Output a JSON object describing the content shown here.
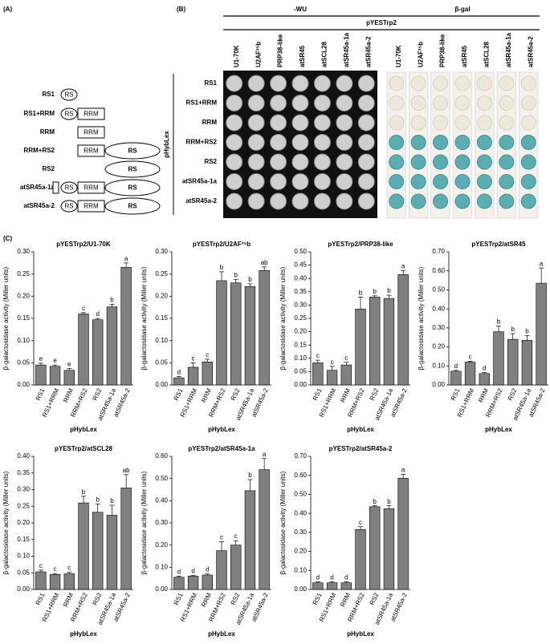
{
  "panel_a": {
    "label": "(A)",
    "constructs": [
      {
        "name": "RS1",
        "domains": [
          "RS"
        ]
      },
      {
        "name": "RS1+RRM",
        "domains": [
          "RS",
          "RRM"
        ]
      },
      {
        "name": "RRM",
        "domains": [
          "RRM"
        ]
      },
      {
        "name": "RRM+RS2",
        "domains": [
          "RRM",
          "RS"
        ]
      },
      {
        "name": "RS2",
        "domains": [
          "RS"
        ]
      },
      {
        "name": "atSR45a-1a",
        "domains": [
          "RS",
          "RRM",
          "RS"
        ]
      },
      {
        "name": "atSR45a-2",
        "domains": [
          "RS",
          "RRM",
          "RS"
        ]
      }
    ]
  },
  "panel_b": {
    "label": "(B)",
    "left_header": "-WU",
    "right_header": "β-gal",
    "span_header": "pYESTrp2",
    "row_axis": "pHybLex",
    "columns": [
      "U1-70K",
      "U2AF³⁵b",
      "PRP38-like",
      "atSR45",
      "atSCL28",
      "atSR45a-1a",
      "atSR45a-2"
    ],
    "rows": [
      "RS1",
      "RS1+RRM",
      "RRM",
      "RRM+RS2",
      "RS2",
      "atSR45a-1a",
      "atSR45a-2"
    ]
  },
  "panel_c_label": "(C)",
  "chart_data": [
    {
      "type": "bar",
      "title": "pYESTrp2/U1-70K",
      "x_label": "pHybLex",
      "y_label": "β-galactosidase activity (Miller units)",
      "color": "#808080",
      "categories": [
        "RS1",
        "RS1+RRM",
        "RRM",
        "RRM+RS2",
        "RS2",
        "atSR45a-1a",
        "atSR45a-2"
      ],
      "values": [
        0.045,
        0.042,
        0.033,
        0.16,
        0.147,
        0.176,
        0.265
      ],
      "errors": [
        0.004,
        0.003,
        0.004,
        0.003,
        0.003,
        0.006,
        0.01
      ],
      "letters": [
        "e",
        "e",
        "e",
        "c",
        "d",
        "b",
        "a"
      ],
      "ylim": [
        0,
        0.3
      ],
      "yticks": [
        {
          "value": 0,
          "label": "0.00"
        },
        {
          "value": 0.05,
          "label": "0.05"
        },
        {
          "value": 0.1,
          "label": "0.10"
        },
        {
          "value": 0.15,
          "label": "0.15"
        },
        {
          "value": 0.2,
          "label": "0.20"
        },
        {
          "value": 0.25,
          "label": "0.25"
        },
        {
          "value": 0.3,
          "label": "0.30"
        }
      ]
    },
    {
      "type": "bar",
      "title": "pYESTrp2/U2AF³⁵b",
      "x_label": "pHybLex",
      "y_label": "β-galactosidase activity (Miller units)",
      "color": "#808080",
      "categories": [
        "RS1",
        "RS1+RRM",
        "RRM",
        "RRM+RS2",
        "RS2",
        "atSR45a-1a",
        "atSR45a-2"
      ],
      "values": [
        0.016,
        0.04,
        0.052,
        0.235,
        0.23,
        0.222,
        0.258
      ],
      "errors": [
        0.003,
        0.01,
        0.006,
        0.02,
        0.008,
        0.006,
        0.008
      ],
      "letters": [
        "d",
        "c",
        "c",
        "b",
        "b",
        "b",
        "ab"
      ],
      "ylim": [
        0,
        0.3
      ],
      "yticks": [
        {
          "value": 0,
          "label": "0.00"
        },
        {
          "value": 0.05,
          "label": "0.05"
        },
        {
          "value": 0.1,
          "label": "0.10"
        },
        {
          "value": 0.15,
          "label": "0.15"
        },
        {
          "value": 0.2,
          "label": "0.20"
        },
        {
          "value": 0.25,
          "label": "0.25"
        },
        {
          "value": 0.3,
          "label": "0.30"
        }
      ]
    },
    {
      "type": "bar",
      "title": "pYESTrp2/PRP38-like",
      "x_label": "pHybLex",
      "y_label": "β-galactosidase activity (Miller units)",
      "color": "#808080",
      "categories": [
        "RS1",
        "RS1+RRM",
        "RRM",
        "RRM+RS2",
        "RS2",
        "atSR45a-1a",
        "atSR45a-2"
      ],
      "values": [
        0.083,
        0.055,
        0.075,
        0.285,
        0.33,
        0.325,
        0.415
      ],
      "errors": [
        0.01,
        0.015,
        0.01,
        0.045,
        0.005,
        0.012,
        0.015
      ],
      "letters": [
        "c",
        "c",
        "c",
        "b",
        "b",
        "b",
        "a"
      ],
      "ylim": [
        0,
        0.5
      ],
      "yticks": [
        {
          "value": 0,
          "label": "0.00"
        },
        {
          "value": 0.05,
          "label": "0.05"
        },
        {
          "value": 0.1,
          "label": "0.10"
        },
        {
          "value": 0.15,
          "label": "0.15"
        },
        {
          "value": 0.2,
          "label": "0.20"
        },
        {
          "value": 0.25,
          "label": "0.25"
        },
        {
          "value": 0.3,
          "label": "0.30"
        },
        {
          "value": 0.35,
          "label": "0.35"
        },
        {
          "value": 0.4,
          "label": "0.40"
        },
        {
          "value": 0.45,
          "label": "0.45"
        },
        {
          "value": 0.5,
          "label": "0.50"
        }
      ]
    },
    {
      "type": "bar",
      "title": "pYESTrp2/atSR45",
      "x_label": "pHybLex",
      "y_label": "β-galactosidase activity (Miller units)",
      "color": "#808080",
      "categories": [
        "RS1",
        "RS1+RRM",
        "RRM",
        "RRM+RS2",
        "RS2",
        "atSR45a-1a",
        "atSR45a-2"
      ],
      "values": [
        0.072,
        0.12,
        0.06,
        0.28,
        0.24,
        0.235,
        0.535
      ],
      "errors": [
        0.005,
        0.005,
        0.005,
        0.03,
        0.03,
        0.025,
        0.08
      ],
      "letters": [
        "d",
        "c",
        "d",
        "b",
        "b",
        "b",
        "a"
      ],
      "ylim": [
        0,
        0.7
      ],
      "yticks": [
        {
          "value": 0,
          "label": "0.00"
        },
        {
          "value": 0.1,
          "label": "0.10"
        },
        {
          "value": 0.2,
          "label": "0.20"
        },
        {
          "value": 0.3,
          "label": "0.30"
        },
        {
          "value": 0.4,
          "label": "0.40"
        },
        {
          "value": 0.5,
          "label": "0.50"
        },
        {
          "value": 0.6,
          "label": "0.60"
        },
        {
          "value": 0.7,
          "label": "0.70"
        }
      ]
    },
    {
      "type": "bar",
      "title": "pYESTrp2/atSCL28",
      "x_label": "pHybLex",
      "y_label": "β-galactosidase activity (Miller units)",
      "color": "#808080",
      "categories": [
        "RS1",
        "RS1+RRM",
        "RRM",
        "RRM+RS2",
        "RS2",
        "atSR45a-1a",
        "atSR45a-2"
      ],
      "values": [
        0.053,
        0.045,
        0.047,
        0.26,
        0.232,
        0.223,
        0.305
      ],
      "errors": [
        0.005,
        0.003,
        0.005,
        0.02,
        0.025,
        0.03,
        0.04
      ],
      "letters": [
        "c",
        "c",
        "c",
        "b",
        "b",
        "b",
        "ab"
      ],
      "ylim": [
        0,
        0.4
      ],
      "yticks": [
        {
          "value": 0,
          "label": "0.00"
        },
        {
          "value": 0.05,
          "label": "0.05"
        },
        {
          "value": 0.1,
          "label": "0.10"
        },
        {
          "value": 0.15,
          "label": "0.15"
        },
        {
          "value": 0.2,
          "label": "0.20"
        },
        {
          "value": 0.25,
          "label": "0.25"
        },
        {
          "value": 0.3,
          "label": "0.30"
        },
        {
          "value": 0.35,
          "label": "0.35"
        },
        {
          "value": 0.4,
          "label": "0.40"
        }
      ]
    },
    {
      "type": "bar",
      "title": "pYESTrp2/atSR45a-1a",
      "x_label": "pHybLex",
      "y_label": "β-galactosidase activity (Miller units)",
      "color": "#808080",
      "categories": [
        "RS1",
        "RS1+RRM",
        "RRM",
        "RRM+RS2",
        "RS2",
        "atSR45a-1a",
        "atSR45a-2"
      ],
      "values": [
        0.055,
        0.06,
        0.065,
        0.175,
        0.2,
        0.445,
        0.54
      ],
      "errors": [
        0.005,
        0.003,
        0.005,
        0.04,
        0.02,
        0.05,
        0.05
      ],
      "letters": [
        "d",
        "d",
        "d",
        "c",
        "c",
        "b",
        "a"
      ],
      "ylim": [
        0,
        0.6
      ],
      "yticks": [
        {
          "value": 0,
          "label": "0.00"
        },
        {
          "value": 0.1,
          "label": "0.10"
        },
        {
          "value": 0.2,
          "label": "0.20"
        },
        {
          "value": 0.3,
          "label": "0.30"
        },
        {
          "value": 0.4,
          "label": "0.40"
        },
        {
          "value": 0.5,
          "label": "0.50"
        },
        {
          "value": 0.6,
          "label": "0.60"
        }
      ]
    },
    {
      "type": "bar",
      "title": "pYESTrp2/atSR45a-2",
      "x_label": "pHybLex",
      "y_label": "β-galactosidase activity (Miller units)",
      "color": "#808080",
      "categories": [
        "RS1",
        "RS1+RRM",
        "RRM",
        "RRM+RS2",
        "RS2",
        "atSR45a-1a",
        "atSR45a-2"
      ],
      "values": [
        0.035,
        0.035,
        0.035,
        0.315,
        0.435,
        0.425,
        0.585
      ],
      "errors": [
        0.005,
        0.005,
        0.005,
        0.015,
        0.005,
        0.015,
        0.02
      ],
      "letters": [
        "d",
        "d",
        "d",
        "c",
        "b",
        "b",
        "a"
      ],
      "ylim": [
        0,
        0.7
      ],
      "yticks": [
        {
          "value": 0,
          "label": "0.00"
        },
        {
          "value": 0.1,
          "label": "0.10"
        },
        {
          "value": 0.2,
          "label": "0.20"
        },
        {
          "value": 0.3,
          "label": "0.30"
        },
        {
          "value": 0.4,
          "label": "0.40"
        },
        {
          "value": 0.5,
          "label": "0.50"
        },
        {
          "value": 0.6,
          "label": "0.60"
        },
        {
          "value": 0.7,
          "label": "0.70"
        }
      ]
    }
  ]
}
